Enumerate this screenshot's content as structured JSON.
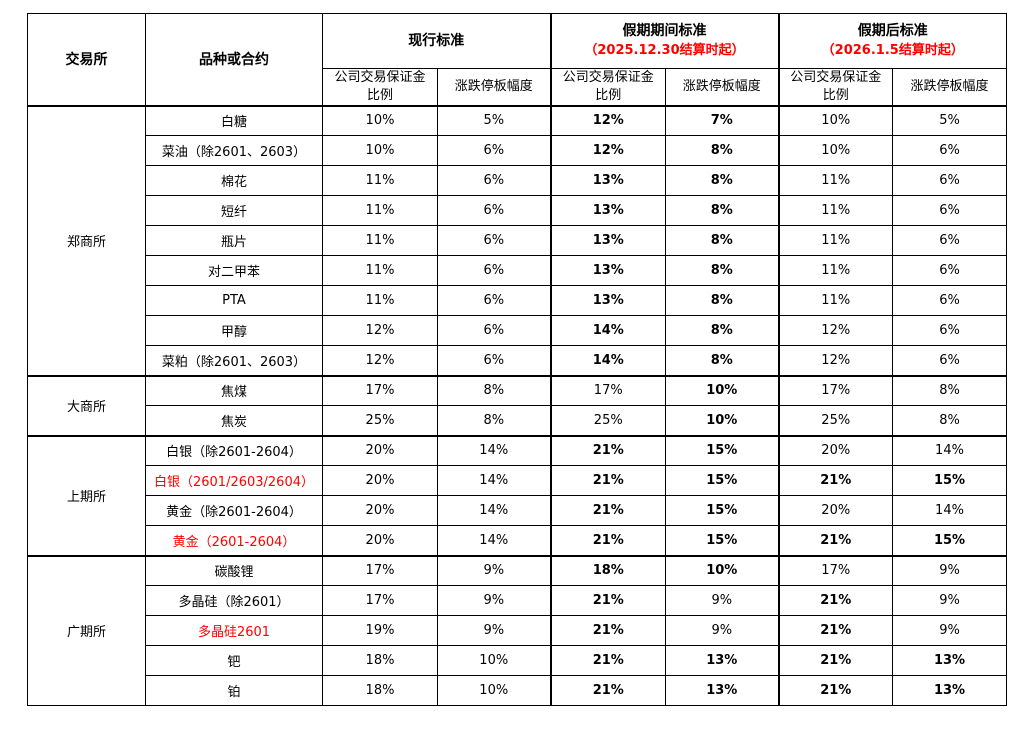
{
  "colors": {
    "background": "#ffffff",
    "text": "#000000",
    "highlight_red": "#ff0000",
    "border": "#000000"
  },
  "table": {
    "corner_headers": {
      "exchange": "交易所",
      "product": "品种或合约"
    },
    "sections": [
      {
        "title": "现行标准",
        "subtitle": ""
      },
      {
        "title": "假期期间标准",
        "subtitle": "（2025.12.30结算时起）"
      },
      {
        "title": "假期后标准",
        "subtitle": "（2026.1.5结算时起）"
      }
    ],
    "subheaders": [
      "公司交易保证金比例",
      "涨跌停板幅度"
    ],
    "groups": [
      {
        "exchange": "郑商所",
        "rows": [
          {
            "product": "白糖",
            "red": false,
            "current": [
              "10%",
              "5%"
            ],
            "holiday": [
              "12%",
              "7%"
            ],
            "holiday_bold": [
              true,
              true
            ],
            "post": [
              "10%",
              "5%"
            ],
            "post_bold": [
              false,
              false
            ]
          },
          {
            "product": "菜油（除2601、2603）",
            "red": false,
            "current": [
              "10%",
              "6%"
            ],
            "holiday": [
              "12%",
              "8%"
            ],
            "holiday_bold": [
              true,
              true
            ],
            "post": [
              "10%",
              "6%"
            ],
            "post_bold": [
              false,
              false
            ]
          },
          {
            "product": "棉花",
            "red": false,
            "current": [
              "11%",
              "6%"
            ],
            "holiday": [
              "13%",
              "8%"
            ],
            "holiday_bold": [
              true,
              true
            ],
            "post": [
              "11%",
              "6%"
            ],
            "post_bold": [
              false,
              false
            ]
          },
          {
            "product": "短纤",
            "red": false,
            "current": [
              "11%",
              "6%"
            ],
            "holiday": [
              "13%",
              "8%"
            ],
            "holiday_bold": [
              true,
              true
            ],
            "post": [
              "11%",
              "6%"
            ],
            "post_bold": [
              false,
              false
            ]
          },
          {
            "product": "瓶片",
            "red": false,
            "current": [
              "11%",
              "6%"
            ],
            "holiday": [
              "13%",
              "8%"
            ],
            "holiday_bold": [
              true,
              true
            ],
            "post": [
              "11%",
              "6%"
            ],
            "post_bold": [
              false,
              false
            ]
          },
          {
            "product": "对二甲苯",
            "red": false,
            "current": [
              "11%",
              "6%"
            ],
            "holiday": [
              "13%",
              "8%"
            ],
            "holiday_bold": [
              true,
              true
            ],
            "post": [
              "11%",
              "6%"
            ],
            "post_bold": [
              false,
              false
            ]
          },
          {
            "product": "PTA",
            "red": false,
            "current": [
              "11%",
              "6%"
            ],
            "holiday": [
              "13%",
              "8%"
            ],
            "holiday_bold": [
              true,
              true
            ],
            "post": [
              "11%",
              "6%"
            ],
            "post_bold": [
              false,
              false
            ]
          },
          {
            "product": "甲醇",
            "red": false,
            "current": [
              "12%",
              "6%"
            ],
            "holiday": [
              "14%",
              "8%"
            ],
            "holiday_bold": [
              true,
              true
            ],
            "post": [
              "12%",
              "6%"
            ],
            "post_bold": [
              false,
              false
            ]
          },
          {
            "product": "菜粕（除2601、2603）",
            "red": false,
            "current": [
              "12%",
              "6%"
            ],
            "holiday": [
              "14%",
              "8%"
            ],
            "holiday_bold": [
              true,
              true
            ],
            "post": [
              "12%",
              "6%"
            ],
            "post_bold": [
              false,
              false
            ]
          }
        ]
      },
      {
        "exchange": "大商所",
        "rows": [
          {
            "product": "焦煤",
            "red": false,
            "current": [
              "17%",
              "8%"
            ],
            "holiday": [
              "17%",
              "10%"
            ],
            "holiday_bold": [
              false,
              true
            ],
            "post": [
              "17%",
              "8%"
            ],
            "post_bold": [
              false,
              false
            ]
          },
          {
            "product": "焦炭",
            "red": false,
            "current": [
              "25%",
              "8%"
            ],
            "holiday": [
              "25%",
              "10%"
            ],
            "holiday_bold": [
              false,
              true
            ],
            "post": [
              "25%",
              "8%"
            ],
            "post_bold": [
              false,
              false
            ]
          }
        ]
      },
      {
        "exchange": "上期所",
        "rows": [
          {
            "product": "白银（除2601-2604）",
            "red": false,
            "current": [
              "20%",
              "14%"
            ],
            "holiday": [
              "21%",
              "15%"
            ],
            "holiday_bold": [
              true,
              true
            ],
            "post": [
              "20%",
              "14%"
            ],
            "post_bold": [
              false,
              false
            ]
          },
          {
            "product": "白银（2601/2603/2604）",
            "red": true,
            "current": [
              "20%",
              "14%"
            ],
            "holiday": [
              "21%",
              "15%"
            ],
            "holiday_bold": [
              true,
              true
            ],
            "post": [
              "21%",
              "15%"
            ],
            "post_bold": [
              true,
              true
            ]
          },
          {
            "product": "黄金（除2601-2604）",
            "red": false,
            "current": [
              "20%",
              "14%"
            ],
            "holiday": [
              "21%",
              "15%"
            ],
            "holiday_bold": [
              true,
              true
            ],
            "post": [
              "20%",
              "14%"
            ],
            "post_bold": [
              false,
              false
            ]
          },
          {
            "product": "黄金（2601-2604）",
            "red": true,
            "current": [
              "20%",
              "14%"
            ],
            "holiday": [
              "21%",
              "15%"
            ],
            "holiday_bold": [
              true,
              true
            ],
            "post": [
              "21%",
              "15%"
            ],
            "post_bold": [
              true,
              true
            ]
          }
        ]
      },
      {
        "exchange": "广期所",
        "rows": [
          {
            "product": "碳酸锂",
            "red": false,
            "current": [
              "17%",
              "9%"
            ],
            "holiday": [
              "18%",
              "10%"
            ],
            "holiday_bold": [
              true,
              true
            ],
            "post": [
              "17%",
              "9%"
            ],
            "post_bold": [
              false,
              false
            ]
          },
          {
            "product": "多晶硅（除2601）",
            "red": false,
            "current": [
              "17%",
              "9%"
            ],
            "holiday": [
              "21%",
              "9%"
            ],
            "holiday_bold": [
              true,
              false
            ],
            "post": [
              "21%",
              "9%"
            ],
            "post_bold": [
              true,
              false
            ]
          },
          {
            "product": "多晶硅2601",
            "red": true,
            "current": [
              "19%",
              "9%"
            ],
            "holiday": [
              "21%",
              "9%"
            ],
            "holiday_bold": [
              true,
              false
            ],
            "post": [
              "21%",
              "9%"
            ],
            "post_bold": [
              true,
              false
            ]
          },
          {
            "product": "钯",
            "red": false,
            "current": [
              "18%",
              "10%"
            ],
            "holiday": [
              "21%",
              "13%"
            ],
            "holiday_bold": [
              true,
              true
            ],
            "post": [
              "21%",
              "13%"
            ],
            "post_bold": [
              true,
              true
            ]
          },
          {
            "product": "铂",
            "red": false,
            "current": [
              "18%",
              "10%"
            ],
            "holiday": [
              "21%",
              "13%"
            ],
            "holiday_bold": [
              true,
              true
            ],
            "post": [
              "21%",
              "13%"
            ],
            "post_bold": [
              true,
              true
            ]
          }
        ]
      }
    ]
  }
}
